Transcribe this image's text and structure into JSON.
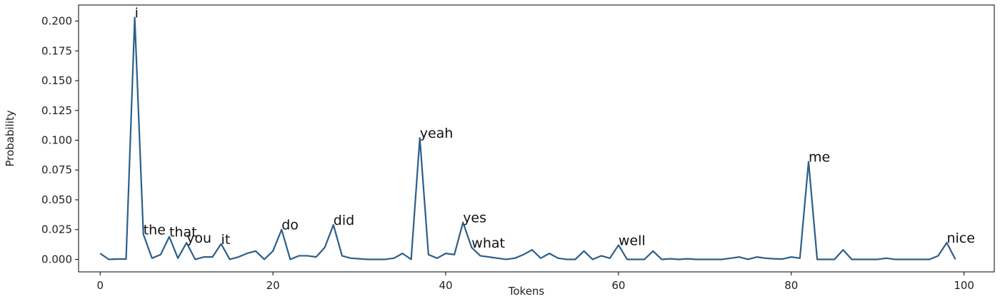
{
  "chart_data": {
    "type": "line",
    "xlabel": "Tokens",
    "ylabel": "Probability",
    "xlim": [
      -2.5,
      103.5
    ],
    "ylim": [
      -0.0105,
      0.2135
    ],
    "xticks": [
      0,
      20,
      40,
      60,
      80,
      100
    ],
    "yticks": [
      0.0,
      0.025,
      0.05,
      0.075,
      0.1,
      0.125,
      0.15,
      0.175,
      0.2
    ],
    "ytick_labels": [
      "0.000",
      "0.025",
      "0.050",
      "0.075",
      "0.100",
      "0.125",
      "0.150",
      "0.175",
      "0.200"
    ],
    "grid": false,
    "line_color": "#2c5f8a",
    "series": [
      {
        "values": [
          0.005,
          0.0,
          0.0003,
          0.0003,
          0.203,
          0.021,
          0.001,
          0.004,
          0.019,
          0.001,
          0.014,
          0.0,
          0.002,
          0.002,
          0.013,
          0.0,
          0.002,
          0.005,
          0.007,
          0.0,
          0.007,
          0.025,
          0.0,
          0.003,
          0.003,
          0.002,
          0.01,
          0.029,
          0.003,
          0.001,
          0.0005,
          0.0,
          0.0,
          0.0,
          0.001,
          0.005,
          0.0,
          0.102,
          0.004,
          0.001,
          0.005,
          0.004,
          0.031,
          0.01,
          0.003,
          0.002,
          0.001,
          0.0,
          0.001,
          0.004,
          0.008,
          0.001,
          0.005,
          0.001,
          0.0,
          0.0,
          0.007,
          0.0,
          0.003,
          0.001,
          0.012,
          0.0,
          0.0,
          0.0,
          0.007,
          0.0,
          0.0005,
          0.0,
          0.0005,
          0.0,
          0.0,
          0.0,
          0.0,
          0.001,
          0.002,
          0.0,
          0.002,
          0.001,
          0.0005,
          0.0003,
          0.002,
          0.001,
          0.082,
          0.0,
          0.0,
          0.0,
          0.008,
          0.0,
          0.0,
          0.0,
          0.0,
          0.001,
          0.0,
          0.0,
          0.0,
          0.0,
          0.0,
          0.003,
          0.014,
          0.0
        ]
      }
    ],
    "annotations": [
      {
        "text": "i",
        "x": 4,
        "y": 0.203
      },
      {
        "text": "the",
        "x": 5,
        "y": 0.021
      },
      {
        "text": "that",
        "x": 8,
        "y": 0.019
      },
      {
        "text": "you",
        "x": 10,
        "y": 0.014
      },
      {
        "text": "it",
        "x": 14,
        "y": 0.013
      },
      {
        "text": "do",
        "x": 21,
        "y": 0.025
      },
      {
        "text": "did",
        "x": 27,
        "y": 0.029
      },
      {
        "text": "yeah",
        "x": 37,
        "y": 0.102
      },
      {
        "text": "yes",
        "x": 42,
        "y": 0.031
      },
      {
        "text": "what",
        "x": 43,
        "y": 0.01
      },
      {
        "text": "well",
        "x": 60,
        "y": 0.012
      },
      {
        "text": "me",
        "x": 82,
        "y": 0.082
      },
      {
        "text": "nice",
        "x": 98,
        "y": 0.014
      }
    ]
  }
}
